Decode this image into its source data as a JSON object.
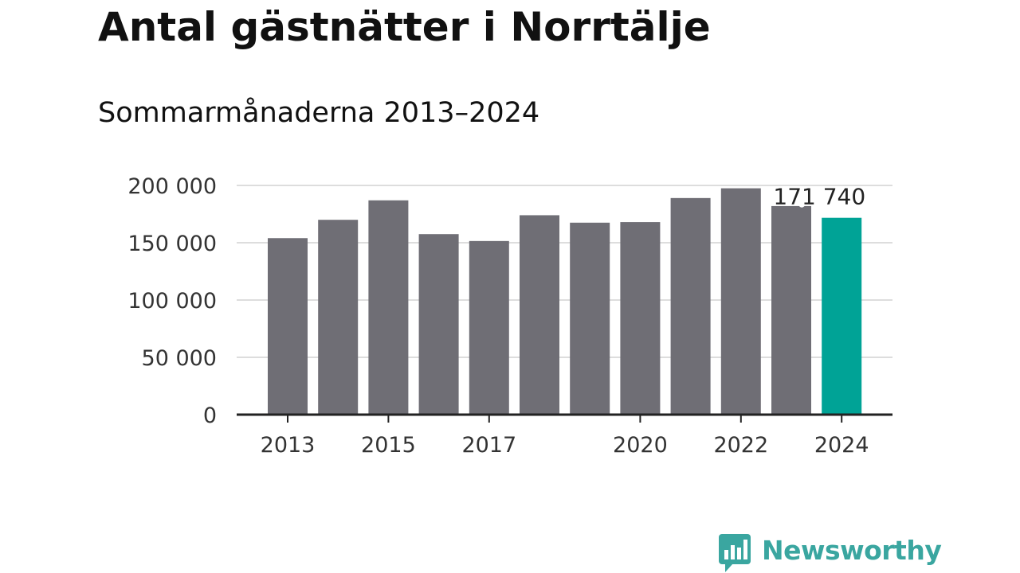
{
  "header": {
    "title": "Antal gästnätter i Norrtälje",
    "subtitle": "Sommarmånaderna 2013–2024"
  },
  "brand": {
    "name": "Newsworthy",
    "logo_icon": "newsworthy-logo-icon"
  },
  "colors": {
    "bar": "#6f6e75",
    "highlight": "#00a396",
    "gridline": "#dddddd",
    "axis": "#222222",
    "brand": "#3aa6a0"
  },
  "chart_data": {
    "type": "bar",
    "title": "Antal gästnätter i Norrtälje",
    "subtitle": "Sommarmånaderna 2013–2024",
    "xlabel": "",
    "ylabel": "",
    "categories": [
      "2013",
      "2014",
      "2015",
      "2016",
      "2017",
      "2018",
      "2019",
      "2020",
      "2021",
      "2022",
      "2023",
      "2024"
    ],
    "values": [
      154000,
      170000,
      187000,
      157500,
      151500,
      174000,
      167500,
      168000,
      189000,
      197500,
      182000,
      171740
    ],
    "highlight_index": 11,
    "ylim": [
      0,
      200000
    ],
    "yticks": [
      0,
      50000,
      100000,
      150000,
      200000
    ],
    "ytick_labels": [
      "0",
      "50 000",
      "100 000",
      "150 000",
      "200 000"
    ],
    "xtick_labels": [
      "2013",
      "2015",
      "2017",
      "2020",
      "2022",
      "2024"
    ],
    "annotation": "171 740",
    "grid": true,
    "legend": "none"
  }
}
